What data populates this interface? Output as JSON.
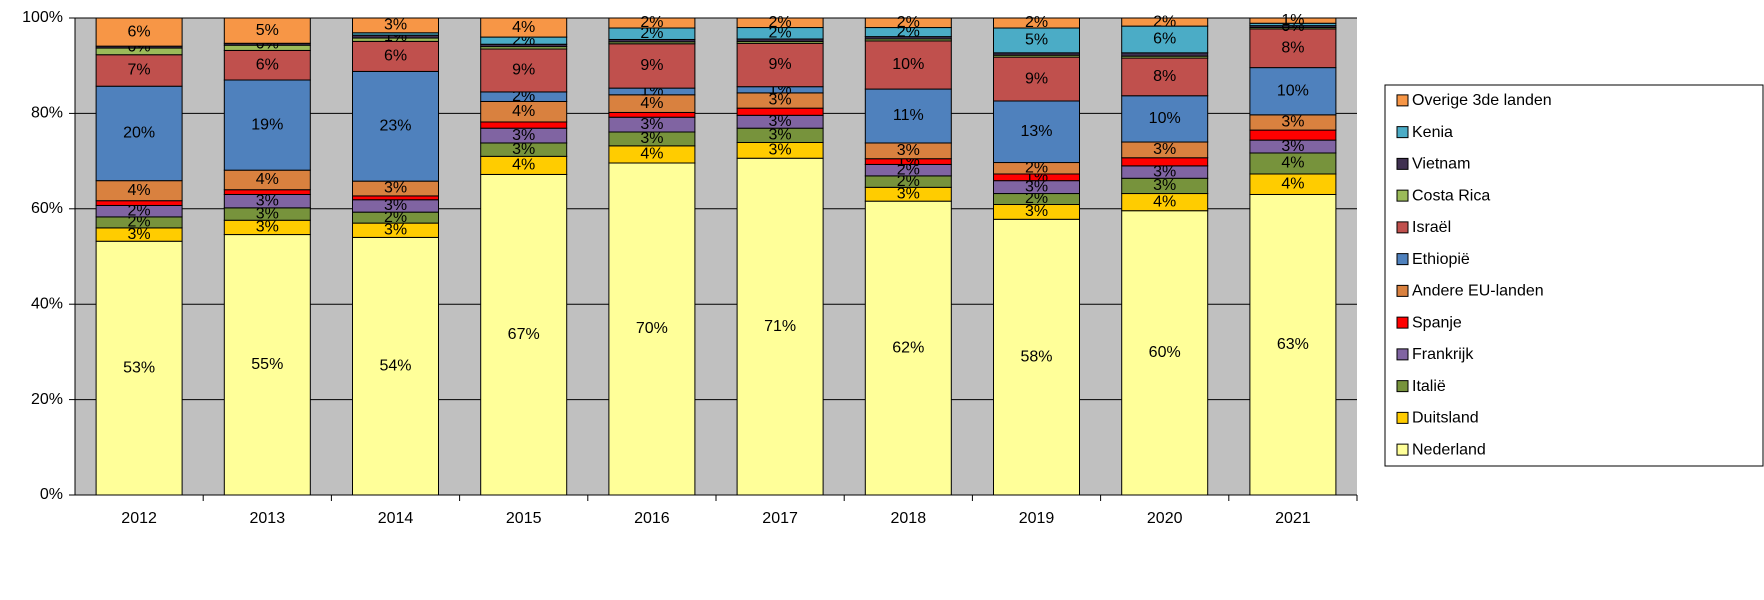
{
  "chart_data": {
    "type": "stacked_bar_100",
    "categories": [
      "2012",
      "2013",
      "2014",
      "2015",
      "2016",
      "2017",
      "2018",
      "2019",
      "2020",
      "2021"
    ],
    "ylim": [
      0,
      100
    ],
    "yticks": [
      {
        "value": 0,
        "label": "0%"
      },
      {
        "value": 20,
        "label": "20%"
      },
      {
        "value": 40,
        "label": "40%"
      },
      {
        "value": 60,
        "label": "60%"
      },
      {
        "value": 80,
        "label": "80%"
      },
      {
        "value": 100,
        "label": "100%"
      }
    ],
    "grid": true,
    "legend": "right",
    "series": [
      {
        "name": "Nederland",
        "color": "#ffff99",
        "values": [
          53.2,
          54.6,
          54.0,
          67.2,
          69.6,
          70.6,
          61.6,
          57.8,
          59.6,
          63.0
        ],
        "value_labels": [
          "53%",
          "55%",
          "54%",
          "67%",
          "70%",
          "71%",
          "62%",
          "58%",
          "60%",
          "63%"
        ]
      },
      {
        "name": "Duitsland",
        "color": "#ffcc00",
        "values": [
          2.8,
          3.0,
          3.0,
          3.8,
          3.6,
          3.3,
          2.9,
          3.1,
          3.6,
          4.3
        ],
        "value_labels": [
          "3%",
          "3%",
          "3%",
          "4%",
          "4%",
          "3%",
          "3%",
          "3%",
          "4%",
          "4%"
        ]
      },
      {
        "name": "Italië",
        "color": "#77933c",
        "values": [
          2.3,
          2.6,
          2.3,
          2.8,
          2.9,
          3.0,
          2.4,
          2.3,
          3.2,
          4.4
        ],
        "value_labels": [
          "2%",
          "3%",
          "2%",
          "3%",
          "3%",
          "3%",
          "2%",
          "2%",
          "3%",
          "4%"
        ]
      },
      {
        "name": "Frankrijk",
        "color": "#8064a2",
        "values": [
          2.4,
          2.8,
          2.6,
          3.1,
          3.1,
          2.7,
          2.4,
          2.7,
          2.6,
          2.7
        ],
        "value_labels": [
          "2%",
          "3%",
          "3%",
          "3%",
          "3%",
          "3%",
          "2%",
          "3%",
          "3%",
          "3%"
        ]
      },
      {
        "name": "Spanje",
        "color": "#ff0000",
        "values": [
          1.0,
          1.0,
          0.8,
          1.3,
          1.0,
          1.5,
          1.2,
          1.4,
          1.7,
          2.1
        ],
        "value_labels": [
          null,
          null,
          null,
          null,
          null,
          null,
          "1%",
          "1%",
          null,
          null
        ]
      },
      {
        "name": "Andere EU-landen",
        "color": "#d9813f",
        "values": [
          4.2,
          4.1,
          3.1,
          4.3,
          3.7,
          3.2,
          3.3,
          2.4,
          3.3,
          3.2
        ],
        "value_labels": [
          "4%",
          "4%",
          "3%",
          "4%",
          "4%",
          "3%",
          "3%",
          "2%",
          "3%",
          "3%"
        ]
      },
      {
        "name": "Ethiopië",
        "color": "#4f81bd",
        "values": [
          19.8,
          18.9,
          23.0,
          2.0,
          1.4,
          1.3,
          11.3,
          12.9,
          9.7,
          9.9
        ],
        "value_labels": [
          "20%",
          "19%",
          "23%",
          "2%",
          "1%",
          "1%",
          "11%",
          "13%",
          "10%",
          "10%"
        ]
      },
      {
        "name": "Israël",
        "color": "#c0504d",
        "values": [
          6.6,
          6.2,
          6.3,
          9.0,
          9.3,
          9.1,
          10.1,
          9.2,
          7.9,
          8.1
        ],
        "value_labels": [
          "7%",
          "6%",
          "6%",
          "9%",
          "9%",
          "9%",
          "10%",
          "9%",
          "8%",
          "8%"
        ]
      },
      {
        "name": "Costa Rica",
        "color": "#9bbb59",
        "values": [
          1.4,
          1.1,
          0.7,
          0.5,
          0.4,
          0.4,
          0.4,
          0.4,
          0.4,
          0.3
        ],
        "value_labels": [
          null,
          null,
          null,
          null,
          null,
          null,
          null,
          null,
          null,
          null
        ]
      },
      {
        "name": "Vietnam",
        "color": "#403151",
        "values": [
          0.4,
          0.4,
          0.6,
          0.5,
          0.5,
          0.5,
          0.5,
          0.5,
          0.7,
          0.4
        ],
        "value_labels": [
          "0%",
          "0%",
          "1%",
          null,
          null,
          null,
          null,
          null,
          null,
          "0%"
        ]
      },
      {
        "name": "Kenia",
        "color": "#4bacc6",
        "values": [
          0,
          0,
          0.5,
          1.5,
          2.4,
          2.4,
          1.9,
          5.2,
          5.6,
          0.5
        ],
        "value_labels": [
          null,
          null,
          null,
          "2%",
          "2%",
          "2%",
          "2%",
          "5%",
          "6%",
          null
        ]
      },
      {
        "name": "Overige 3de landen",
        "color": "#f79646",
        "values": [
          5.9,
          5.3,
          3.1,
          4.0,
          2.1,
          2.0,
          2.0,
          2.1,
          1.7,
          1.1
        ],
        "value_labels": [
          "6%",
          "5%",
          "3%",
          "4%",
          "2%",
          "2%",
          "2%",
          "2%",
          "2%",
          "1%"
        ]
      }
    ]
  }
}
